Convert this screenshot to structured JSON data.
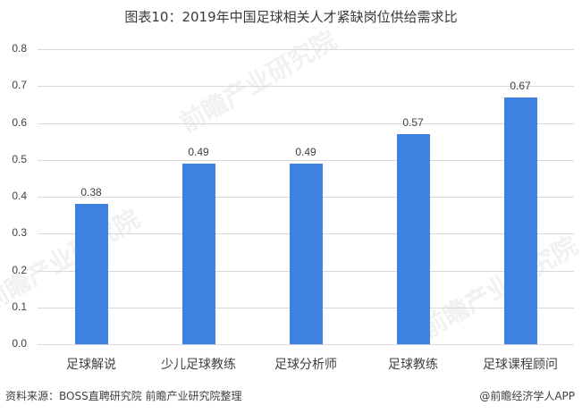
{
  "title": "图表10：2019年中国足球相关人才紧缺岗位供给需求比",
  "source": "资料来源：BOSS直聘研究院 前瞻产业研究院整理",
  "credit": "@前瞻经济学人APP",
  "watermark": "前瞻产业研究院",
  "y_ticks": [
    "0.0",
    "0.1",
    "0.2",
    "0.3",
    "0.4",
    "0.5",
    "0.6",
    "0.7",
    "0.8"
  ],
  "bar_labels": [
    "0.38",
    "0.49",
    "0.49",
    "0.57",
    "0.67"
  ],
  "colors": {
    "bar": "#3f81e0",
    "grid": "#d9d9d9",
    "text": "#404040"
  },
  "chart_data": {
    "type": "bar",
    "title": "图表10：2019年中国足球相关人才紧缺岗位供给需求比",
    "categories": [
      "足球解说",
      "少儿足球教练",
      "足球分析师",
      "足球教练",
      "足球课程顾问"
    ],
    "values": [
      0.38,
      0.49,
      0.49,
      0.57,
      0.67
    ],
    "xlabel": "",
    "ylabel": "",
    "ylim": [
      0,
      0.8
    ],
    "yticks": [
      0.0,
      0.1,
      0.2,
      0.3,
      0.4,
      0.5,
      0.6,
      0.7,
      0.8
    ],
    "grid": true,
    "legend": "none",
    "data_labels": true
  }
}
